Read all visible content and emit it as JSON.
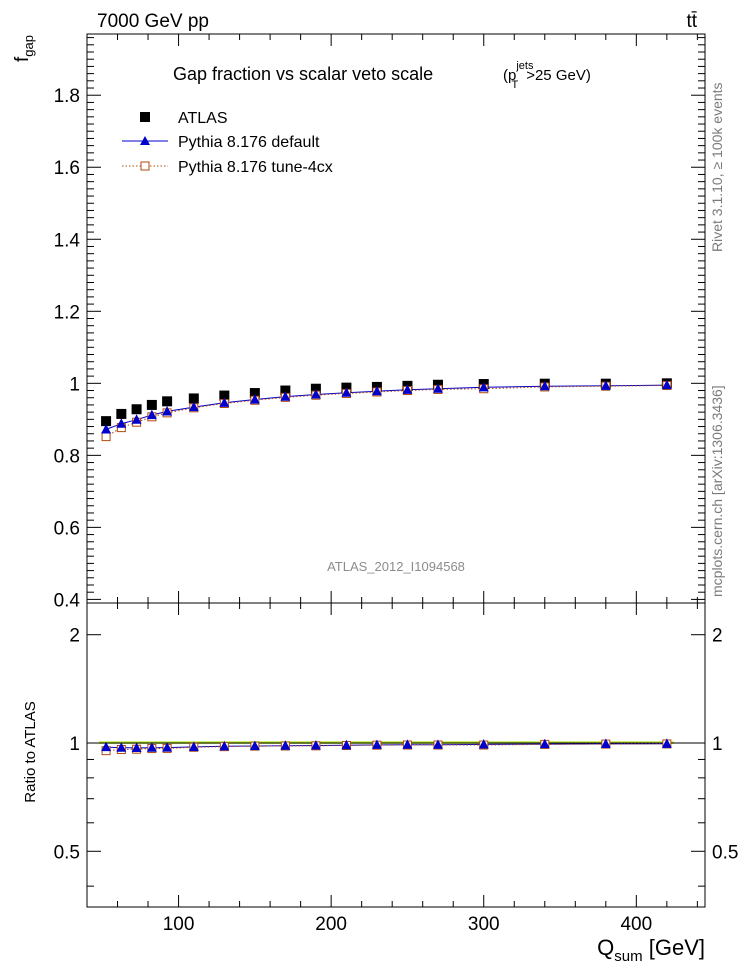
{
  "header": {
    "left": "7000 GeV pp",
    "right": "tt̄"
  },
  "side_labels": {
    "rivet": "Rivet 3.1.10, ≥ 100k events",
    "mcplots": "mcplots.cern.ch [arXiv:1306.3436]"
  },
  "chart_data": {
    "type": "scatter",
    "title": "Gap fraction vs scalar veto scale",
    "title_cut": {
      "p": "(p",
      "sup": "jets",
      "sub": "T",
      "tail": ">25 GeV)"
    },
    "analysis_id": "ATLAS_2012_I1094568",
    "x_axis": {
      "label_main": "Q",
      "label_sub": "sum",
      "label_unit": " [GeV]",
      "range": [
        40,
        445
      ],
      "ticks": [
        100,
        200,
        300,
        400
      ],
      "tick_labels": [
        "100",
        "200",
        "300",
        "400"
      ]
    },
    "main_panel": {
      "ylabel_main": "f",
      "ylabel_sub": "gap",
      "ylim": [
        0.39,
        1.97
      ],
      "ticks": [
        0.4,
        0.6,
        0.8,
        1.0,
        1.2,
        1.4,
        1.6,
        1.8
      ],
      "tick_labels": [
        "0.4",
        "0.6",
        "0.8",
        "1",
        "1.2",
        "1.4",
        "1.6",
        "1.8"
      ]
    },
    "ratio_panel": {
      "ylabel": "Ratio to ATLAS",
      "ylim": [
        0.35,
        2.45
      ],
      "log_scale": true,
      "ticks": [
        0.5,
        1,
        2
      ],
      "tick_labels": [
        "0.5",
        "1",
        "2"
      ]
    },
    "x": [
      52.5,
      62.5,
      72.5,
      82.5,
      92.5,
      110,
      130,
      150,
      170,
      190,
      210,
      230,
      250,
      270,
      300,
      340,
      380,
      420
    ],
    "series": [
      {
        "name": "ATLAS",
        "marker": "filled-square",
        "color": "#000000",
        "values": [
          0.895,
          0.915,
          0.928,
          0.94,
          0.95,
          0.958,
          0.966,
          0.973,
          0.98,
          0.985,
          0.988,
          0.99,
          0.993,
          0.996,
          0.998,
          0.999,
          0.999,
          1.0
        ]
      },
      {
        "name": "Pythia 8.176 default",
        "marker": "filled-triangle",
        "color": "#0000cc",
        "line_style": "solid",
        "values": [
          0.872,
          0.888,
          0.899,
          0.912,
          0.922,
          0.934,
          0.946,
          0.955,
          0.963,
          0.969,
          0.974,
          0.978,
          0.982,
          0.985,
          0.989,
          0.992,
          0.993,
          0.995
        ],
        "ratio": [
          0.974,
          0.97,
          0.969,
          0.97,
          0.971,
          0.975,
          0.979,
          0.981,
          0.983,
          0.984,
          0.986,
          0.988,
          0.989,
          0.989,
          0.991,
          0.993,
          0.994,
          0.995
        ]
      },
      {
        "name": "Pythia 8.176 tune-4cx",
        "marker": "open-square",
        "color": "#b04a10",
        "line_style": "dotted",
        "values": [
          0.852,
          0.877,
          0.892,
          0.907,
          0.918,
          0.932,
          0.944,
          0.953,
          0.961,
          0.967,
          0.972,
          0.976,
          0.98,
          0.983,
          0.985,
          0.99,
          0.992,
          0.994
        ],
        "ratio": [
          0.952,
          0.959,
          0.961,
          0.965,
          0.966,
          0.973,
          0.977,
          0.98,
          0.981,
          0.982,
          0.984,
          0.986,
          0.987,
          0.987,
          0.987,
          0.991,
          0.993,
          0.994
        ]
      }
    ],
    "legend_position": "top-left"
  },
  "colors": {
    "axis": "#000000",
    "analysis_id": "#8c8c8c",
    "side_label": "#7a7a7a",
    "ratio_band": "#b8f04a",
    "ratio_band_core": "#e6f000"
  }
}
